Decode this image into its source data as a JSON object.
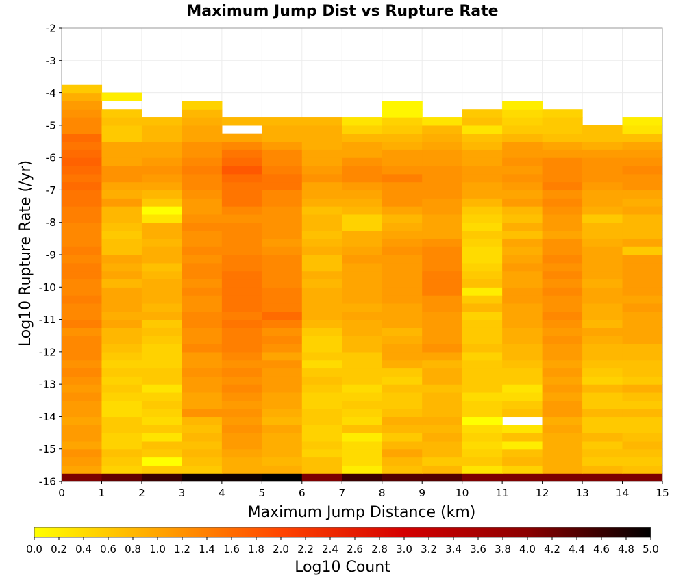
{
  "chart_data": {
    "type": "heatmap",
    "title": "Maximum Jump Dist vs Rupture Rate",
    "xlabel": "Maximum Jump Distance (km)",
    "ylabel": "Log10 Rupture Rate (/yr)",
    "xlim": [
      0,
      15
    ],
    "ylim": [
      -16,
      -2
    ],
    "x_ticks": [
      "0",
      "1",
      "2",
      "3",
      "4",
      "5",
      "6",
      "7",
      "8",
      "9",
      "10",
      "11",
      "12",
      "13",
      "14",
      "15"
    ],
    "y_ticks": [
      "-2",
      "-3",
      "-4",
      "-5",
      "-6",
      "-7",
      "-8",
      "-9",
      "-10",
      "-11",
      "-12",
      "-13",
      "-14",
      "-15",
      "-16"
    ],
    "x_bin_edges": [
      0,
      1,
      2,
      3,
      4,
      5,
      6,
      7,
      8,
      9,
      10,
      11,
      12,
      13,
      14,
      15
    ],
    "y_bin_start": -16,
    "y_bin_width": 0.25,
    "colorbar": {
      "label": "Log10 Count",
      "range": [
        0,
        5
      ],
      "ticks": [
        "0.0",
        "0.2",
        "0.4",
        "0.6",
        "0.8",
        "1.0",
        "1.2",
        "1.4",
        "1.6",
        "1.8",
        "2.0",
        "2.2",
        "2.4",
        "2.6",
        "2.8",
        "3.0",
        "3.2",
        "3.4",
        "3.6",
        "3.8",
        "4.0",
        "4.2",
        "4.4",
        "4.6",
        "4.8",
        "5.0"
      ],
      "colors": [
        "#ffff00",
        "#ffa500",
        "#ff4500",
        "#d40000",
        "#8b0000",
        "#000000"
      ]
    },
    "values": [
      [
        4.1,
        4.3,
        4.6,
        4.9,
        4.9,
        5.0,
        4.1,
        4.6,
        4.4,
        4.4,
        4.1,
        4.1,
        4.1,
        4.1,
        4.1
      ],
      [
        1.0,
        0.5,
        0.6,
        0.6,
        0.9,
        0.9,
        0.7,
        0.2,
        0.7,
        0.8,
        0.3,
        0.5,
        0.9,
        0.8,
        0.7
      ],
      [
        1.1,
        0.6,
        0.0,
        0.7,
        0.9,
        0.8,
        0.7,
        0.4,
        0.8,
        0.6,
        0.6,
        0.8,
        0.9,
        0.6,
        0.6
      ],
      [
        1.2,
        0.7,
        0.6,
        0.8,
        1.0,
        0.9,
        0.5,
        0.4,
        1.0,
        0.8,
        0.5,
        0.7,
        0.9,
        0.7,
        0.7
      ],
      [
        1.0,
        0.5,
        0.7,
        0.7,
        1.1,
        0.9,
        0.6,
        0.4,
        0.8,
        0.8,
        0.4,
        0.2,
        0.9,
        0.6,
        0.8
      ],
      [
        1.1,
        0.5,
        0.3,
        0.8,
        1.1,
        0.9,
        0.5,
        0.2,
        0.6,
        0.9,
        0.5,
        0.7,
        0.9,
        0.8,
        0.7
      ],
      [
        1.1,
        0.6,
        0.6,
        0.7,
        1.2,
        1.0,
        0.5,
        0.7,
        0.8,
        0.8,
        0.4,
        0.3,
        1.0,
        0.6,
        0.6
      ],
      [
        1.0,
        0.6,
        0.4,
        0.8,
        1.1,
        0.8,
        0.6,
        0.4,
        0.9,
        0.9,
        0.0,
        null,
        0.9,
        0.6,
        0.6
      ],
      [
        1.1,
        0.4,
        0.5,
        1.2,
        1.2,
        0.9,
        0.6,
        0.5,
        0.7,
        0.8,
        0.5,
        0.7,
        1.1,
        0.8,
        0.8
      ],
      [
        1.1,
        0.4,
        0.6,
        1.0,
        1.1,
        1.0,
        0.5,
        0.6,
        0.6,
        0.8,
        0.5,
        0.6,
        1.1,
        0.6,
        0.6
      ],
      [
        1.2,
        0.5,
        0.5,
        1.0,
        1.2,
        1.0,
        0.5,
        0.5,
        0.6,
        0.8,
        0.4,
        0.4,
        1.0,
        0.6,
        0.7
      ],
      [
        1.1,
        0.6,
        0.3,
        1.1,
        1.3,
        1.1,
        0.6,
        0.4,
        0.7,
        0.7,
        0.6,
        0.3,
        1.1,
        0.8,
        0.9
      ],
      [
        1.2,
        0.5,
        0.6,
        1.1,
        1.2,
        1.1,
        0.7,
        0.6,
        0.5,
        0.9,
        0.6,
        0.6,
        1.0,
        0.5,
        0.6
      ],
      [
        1.3,
        0.6,
        0.6,
        1.2,
        1.3,
        1.1,
        0.6,
        0.6,
        0.6,
        0.9,
        0.6,
        0.6,
        1.1,
        0.6,
        0.7
      ],
      [
        1.2,
        0.5,
        0.5,
        1.1,
        1.2,
        1.2,
        0.4,
        0.6,
        0.9,
        0.8,
        0.6,
        0.7,
        1.0,
        0.7,
        0.7
      ],
      [
        1.3,
        0.6,
        0.5,
        1.1,
        1.3,
        1.0,
        0.6,
        0.6,
        1.0,
        1.0,
        0.5,
        0.8,
        1.1,
        0.8,
        0.8
      ],
      [
        1.3,
        0.7,
        0.5,
        1.3,
        1.4,
        1.2,
        0.5,
        0.8,
        1.0,
        1.2,
        0.7,
        0.8,
        1.1,
        0.8,
        0.8
      ],
      [
        1.3,
        0.8,
        0.6,
        1.2,
        1.4,
        1.3,
        0.5,
        0.8,
        0.9,
        1.1,
        0.6,
        0.9,
        1.2,
        0.9,
        1.0
      ],
      [
        1.2,
        0.8,
        0.7,
        1.2,
        1.4,
        1.2,
        0.6,
        0.9,
        0.8,
        1.1,
        0.6,
        0.9,
        1.1,
        1.0,
        1.0
      ],
      [
        1.4,
        1.0,
        0.6,
        1.3,
        1.5,
        1.4,
        0.8,
        0.9,
        1.0,
        1.1,
        0.6,
        1.0,
        1.2,
        0.8,
        1.0
      ],
      [
        1.3,
        0.9,
        0.9,
        1.3,
        1.4,
        1.6,
        0.9,
        1.0,
        1.0,
        1.1,
        0.5,
        1.0,
        1.3,
        0.9,
        1.0
      ],
      [
        1.3,
        1.0,
        0.8,
        1.2,
        1.5,
        1.4,
        0.9,
        0.9,
        1.0,
        1.2,
        0.8,
        1.0,
        1.2,
        0.9,
        1.1
      ],
      [
        1.4,
        1.0,
        0.9,
        1.2,
        1.5,
        1.4,
        0.9,
        1.0,
        1.1,
        1.2,
        0.6,
        1.1,
        1.2,
        1.0,
        1.0
      ],
      [
        1.3,
        1.0,
        0.9,
        1.3,
        1.5,
        1.4,
        0.9,
        1.0,
        1.1,
        1.4,
        0.2,
        1.1,
        1.3,
        1.0,
        1.1
      ],
      [
        1.3,
        0.8,
        0.9,
        1.2,
        1.5,
        1.3,
        0.8,
        1.0,
        1.1,
        1.4,
        0.7,
        1.0,
        1.2,
        0.9,
        1.1
      ],
      [
        1.4,
        1.0,
        0.8,
        1.3,
        1.5,
        1.3,
        0.9,
        1.0,
        1.1,
        1.4,
        0.6,
        1.0,
        1.3,
        1.0,
        1.1
      ],
      [
        1.4,
        0.9,
        0.7,
        1.3,
        1.4,
        1.3,
        0.7,
        1.0,
        1.1,
        1.3,
        0.5,
        1.1,
        1.2,
        1.0,
        1.1
      ],
      [
        1.3,
        1.0,
        0.9,
        1.2,
        1.4,
        1.3,
        0.7,
        1.1,
        1.1,
        1.3,
        0.4,
        1.0,
        1.3,
        1.0,
        1.1
      ],
      [
        1.4,
        0.7,
        0.9,
        1.3,
        1.3,
        1.2,
        0.9,
        1.0,
        1.2,
        1.3,
        0.4,
        0.9,
        1.2,
        1.0,
        0.6
      ],
      [
        1.3,
        0.7,
        0.8,
        1.2,
        1.3,
        1.1,
        0.8,
        0.9,
        1.1,
        1.2,
        0.5,
        1.0,
        1.2,
        0.9,
        1.0
      ],
      [
        1.3,
        0.6,
        0.9,
        1.2,
        1.3,
        1.2,
        0.7,
        0.9,
        1.0,
        1.0,
        0.6,
        0.7,
        1.0,
        0.8,
        0.8
      ],
      [
        1.3,
        0.7,
        0.9,
        1.3,
        1.3,
        1.2,
        0.8,
        0.5,
        0.9,
        1.0,
        0.4,
        0.9,
        1.1,
        0.8,
        0.8
      ],
      [
        1.4,
        0.8,
        0.3,
        1.2,
        1.2,
        1.2,
        0.8,
        0.5,
        0.8,
        1.0,
        0.5,
        0.7,
        1.1,
        0.6,
        0.8
      ],
      [
        1.4,
        0.8,
        0.0,
        1.1,
        1.3,
        1.2,
        0.7,
        0.8,
        1.0,
        1.1,
        0.6,
        0.8,
        1.2,
        0.9,
        1.0
      ],
      [
        1.5,
        1.1,
        0.6,
        1.1,
        1.5,
        1.3,
        0.9,
        0.9,
        1.2,
        1.1,
        0.8,
        1.1,
        1.3,
        1.0,
        0.9
      ],
      [
        1.5,
        0.9,
        0.8,
        1.2,
        1.5,
        1.3,
        1.0,
        1.0,
        1.2,
        1.2,
        1.0,
        1.0,
        1.2,
        1.0,
        1.0
      ],
      [
        1.6,
        1.0,
        1.0,
        1.3,
        1.5,
        1.5,
        1.0,
        1.1,
        1.2,
        1.2,
        1.0,
        1.1,
        1.4,
        1.1,
        1.2
      ],
      [
        1.5,
        1.2,
        1.1,
        1.3,
        1.6,
        1.5,
        1.2,
        1.3,
        1.4,
        1.2,
        1.1,
        1.2,
        1.3,
        1.2,
        1.2
      ],
      [
        1.6,
        1.2,
        1.2,
        1.4,
        1.8,
        1.4,
        1.1,
        1.3,
        1.2,
        1.2,
        1.1,
        1.1,
        1.3,
        1.2,
        1.3
      ],
      [
        1.7,
        1.0,
        1.1,
        1.3,
        1.6,
        1.3,
        1.0,
        1.2,
        1.1,
        1.1,
        1.0,
        1.2,
        1.3,
        1.2,
        1.2
      ],
      [
        1.6,
        1.0,
        1.0,
        1.2,
        1.5,
        1.3,
        1.0,
        1.0,
        1.1,
        1.1,
        1.0,
        1.1,
        1.1,
        1.1,
        1.1
      ],
      [
        1.5,
        1.0,
        1.0,
        1.2,
        1.3,
        1.1,
        0.9,
        1.0,
        0.9,
        1.0,
        0.8,
        1.1,
        1.0,
        0.9,
        1.0
      ],
      [
        1.6,
        0.6,
        0.8,
        1.0,
        1.0,
        0.9,
        0.9,
        0.8,
        0.8,
        0.9,
        0.7,
        0.8,
        0.7,
        0.7,
        0.7
      ],
      [
        1.3,
        0.6,
        0.8,
        1.0,
        null,
        0.9,
        0.9,
        0.5,
        0.6,
        0.8,
        0.3,
        0.6,
        0.6,
        0.7,
        0.3
      ],
      [
        1.3,
        0.7,
        0.7,
        0.9,
        0.8,
        0.8,
        0.8,
        0.3,
        0.5,
        0.3,
        0.7,
        0.5,
        0.6,
        null,
        0.2
      ],
      [
        1.2,
        0.6,
        null,
        0.8,
        null,
        null,
        null,
        null,
        0.1,
        null,
        0.6,
        0.4,
        0.5,
        null,
        null
      ],
      [
        1.1,
        null,
        null,
        0.5,
        null,
        null,
        null,
        null,
        0.1,
        null,
        null,
        0.2,
        null,
        null,
        null
      ],
      [
        0.9,
        0.2,
        null,
        null,
        null,
        null,
        null,
        null,
        null,
        null,
        null,
        null,
        null,
        null,
        null
      ],
      [
        0.6,
        null,
        null,
        null,
        null,
        null,
        null,
        null,
        null,
        null,
        null,
        null,
        null,
        null,
        null
      ]
    ]
  }
}
